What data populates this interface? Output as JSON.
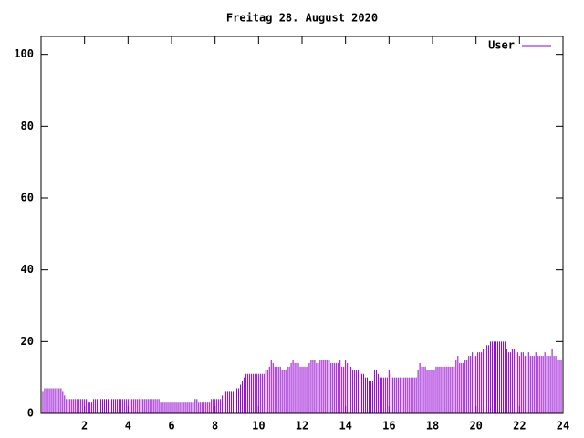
{
  "chart_data": {
    "type": "impulse",
    "title": "Freitag 28. August 2020",
    "x": [
      0,
      0.083,
      0.167,
      0.25,
      0.333,
      0.417,
      0.5,
      0.583,
      0.667,
      0.75,
      0.833,
      0.917,
      1,
      1.083,
      1.167,
      1.25,
      1.333,
      1.417,
      1.5,
      1.583,
      1.667,
      1.75,
      1.833,
      1.917,
      2,
      2.083,
      2.167,
      2.25,
      2.333,
      2.417,
      2.5,
      2.583,
      2.667,
      2.75,
      2.833,
      2.917,
      3,
      3.083,
      3.167,
      3.25,
      3.333,
      3.417,
      3.5,
      3.583,
      3.667,
      3.75,
      3.833,
      3.917,
      4,
      4.083,
      4.167,
      4.25,
      4.333,
      4.417,
      4.5,
      4.583,
      4.667,
      4.75,
      4.833,
      4.917,
      5,
      5.083,
      5.167,
      5.25,
      5.333,
      5.417,
      5.5,
      5.583,
      5.667,
      5.75,
      5.833,
      5.917,
      6,
      6.083,
      6.167,
      6.25,
      6.333,
      6.417,
      6.5,
      6.583,
      6.667,
      6.75,
      6.833,
      6.917,
      7,
      7.083,
      7.167,
      7.25,
      7.333,
      7.417,
      7.5,
      7.583,
      7.667,
      7.75,
      7.833,
      7.917,
      8,
      8.083,
      8.167,
      8.25,
      8.333,
      8.417,
      8.5,
      8.583,
      8.667,
      8.75,
      8.833,
      8.917,
      9,
      9.083,
      9.167,
      9.25,
      9.333,
      9.417,
      9.5,
      9.583,
      9.667,
      9.75,
      9.833,
      9.917,
      10,
      10.083,
      10.167,
      10.25,
      10.333,
      10.417,
      10.5,
      10.583,
      10.667,
      10.75,
      10.833,
      10.917,
      11,
      11.083,
      11.167,
      11.25,
      11.333,
      11.417,
      11.5,
      11.583,
      11.667,
      11.75,
      11.833,
      11.917,
      12,
      12.083,
      12.167,
      12.25,
      12.333,
      12.417,
      12.5,
      12.583,
      12.667,
      12.75,
      12.833,
      12.917,
      13,
      13.083,
      13.167,
      13.25,
      13.333,
      13.417,
      13.5,
      13.583,
      13.667,
      13.75,
      13.833,
      13.917,
      14,
      14.083,
      14.167,
      14.25,
      14.333,
      14.417,
      14.5,
      14.583,
      14.667,
      14.75,
      14.833,
      14.917,
      15,
      15.083,
      15.167,
      15.25,
      15.333,
      15.417,
      15.5,
      15.583,
      15.667,
      15.75,
      15.833,
      15.917,
      16,
      16.083,
      16.167,
      16.25,
      16.333,
      16.417,
      16.5,
      16.583,
      16.667,
      16.75,
      16.833,
      16.917,
      17,
      17.083,
      17.167,
      17.25,
      17.333,
      17.417,
      17.5,
      17.583,
      17.667,
      17.75,
      17.833,
      17.917,
      18,
      18.083,
      18.167,
      18.25,
      18.333,
      18.417,
      18.5,
      18.583,
      18.667,
      18.75,
      18.833,
      18.917,
      19,
      19.083,
      19.167,
      19.25,
      19.333,
      19.417,
      19.5,
      19.583,
      19.667,
      19.75,
      19.833,
      19.917,
      20,
      20.083,
      20.167,
      20.25,
      20.333,
      20.417,
      20.5,
      20.583,
      20.667,
      20.75,
      20.833,
      20.917,
      21,
      21.083,
      21.167,
      21.25,
      21.333,
      21.417,
      21.5,
      21.583,
      21.667,
      21.75,
      21.833,
      21.917,
      22,
      22.083,
      22.167,
      22.25,
      22.333,
      22.417,
      22.5,
      22.583,
      22.667,
      22.75,
      22.833,
      22.917,
      23,
      23.083,
      23.167,
      23.25,
      23.333,
      23.417,
      23.5,
      23.583,
      23.667,
      23.75,
      23.833,
      23.917
    ],
    "series": [
      {
        "name": "User",
        "color": "#9400d3",
        "values": [
          6,
          6,
          7,
          7,
          7,
          7,
          7,
          7,
          7,
          7,
          7,
          7,
          6,
          5,
          4,
          4,
          4,
          4,
          4,
          4,
          4,
          4,
          4,
          4,
          4,
          4,
          3,
          3,
          3,
          4,
          4,
          4,
          4,
          4,
          4,
          4,
          4,
          4,
          4,
          4,
          4,
          4,
          4,
          4,
          4,
          4,
          4,
          4,
          4,
          4,
          4,
          4,
          4,
          4,
          4,
          4,
          4,
          4,
          4,
          4,
          4,
          4,
          4,
          4,
          4,
          4,
          3,
          3,
          3,
          3,
          3,
          3,
          3,
          3,
          3,
          3,
          3,
          3,
          3,
          3,
          3,
          3,
          3,
          3,
          3,
          4,
          4,
          3,
          3,
          3,
          3,
          3,
          3,
          3,
          4,
          4,
          4,
          4,
          4,
          4,
          5,
          6,
          6,
          6,
          6,
          6,
          6,
          6,
          7,
          7,
          8,
          9,
          10,
          11,
          11,
          11,
          11,
          11,
          11,
          11,
          11,
          11,
          11,
          11,
          12,
          12,
          13,
          15,
          14,
          13,
          13,
          13,
          13,
          12,
          12,
          12,
          13,
          13,
          14,
          15,
          14,
          14,
          14,
          13,
          13,
          13,
          13,
          13,
          14,
          15,
          15,
          15,
          14,
          14,
          15,
          15,
          15,
          15,
          15,
          15,
          14,
          14,
          14,
          14,
          14,
          15,
          13,
          13,
          15,
          14,
          13,
          13,
          12,
          12,
          12,
          12,
          12,
          11,
          11,
          10,
          10,
          9,
          9,
          9,
          12,
          12,
          11,
          10,
          10,
          10,
          10,
          10,
          12,
          11,
          10,
          10,
          10,
          10,
          10,
          10,
          10,
          10,
          10,
          10,
          10,
          10,
          10,
          10,
          12,
          14,
          13,
          13,
          13,
          12,
          12,
          12,
          12,
          12,
          13,
          13,
          13,
          13,
          13,
          13,
          13,
          13,
          13,
          13,
          13,
          15,
          16,
          14,
          14,
          14,
          15,
          15,
          16,
          16,
          17,
          16,
          16,
          17,
          17,
          17,
          18,
          18,
          19,
          19,
          20,
          20,
          20,
          20,
          20,
          20,
          20,
          20,
          20,
          18,
          17,
          17,
          18,
          18,
          18,
          17,
          16,
          17,
          17,
          16,
          16,
          17,
          16,
          16,
          16,
          17,
          16,
          16,
          16,
          16,
          17,
          16,
          16,
          16,
          18,
          16,
          16,
          15,
          15,
          15
        ]
      }
    ],
    "xlim": [
      0,
      24
    ],
    "ylim": [
      0,
      105
    ],
    "xticks": [
      2,
      4,
      6,
      8,
      10,
      12,
      14,
      16,
      18,
      20,
      22,
      24
    ],
    "yticks": [
      0,
      20,
      40,
      60,
      80,
      100
    ],
    "legend": "top-right"
  }
}
